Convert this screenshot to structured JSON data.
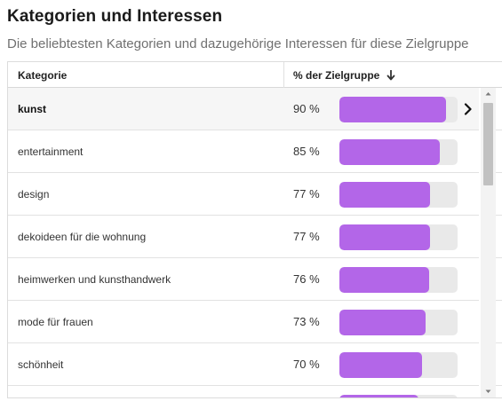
{
  "header": {
    "title": "Kategorien und Interessen",
    "subtitle": "Die beliebtesten Kategorien und dazugehörige Interessen für diese Zielgruppe"
  },
  "table": {
    "columns": {
      "category": "Kategorie",
      "percent": "% der Zielgruppe"
    },
    "sort_icon": "arrow-down-icon",
    "rows": [
      {
        "category": "kunst",
        "percent": "90 %",
        "value": 0.9,
        "selected": true
      },
      {
        "category": "entertainment",
        "percent": "85 %",
        "value": 0.85
      },
      {
        "category": "design",
        "percent": "77 %",
        "value": 0.77
      },
      {
        "category": "dekoideen für die wohnung",
        "percent": "77 %",
        "value": 0.77
      },
      {
        "category": "heimwerken und kunsthandwerk",
        "percent": "76 %",
        "value": 0.76
      },
      {
        "category": "mode für frauen",
        "percent": "73 %",
        "value": 0.73
      },
      {
        "category": "schönheit",
        "percent": "70 %",
        "value": 0.7
      },
      {
        "category": "",
        "percent": "",
        "value": 0.67
      }
    ]
  },
  "colors": {
    "bar": "#b366e8",
    "track": "#e9e9e9"
  }
}
